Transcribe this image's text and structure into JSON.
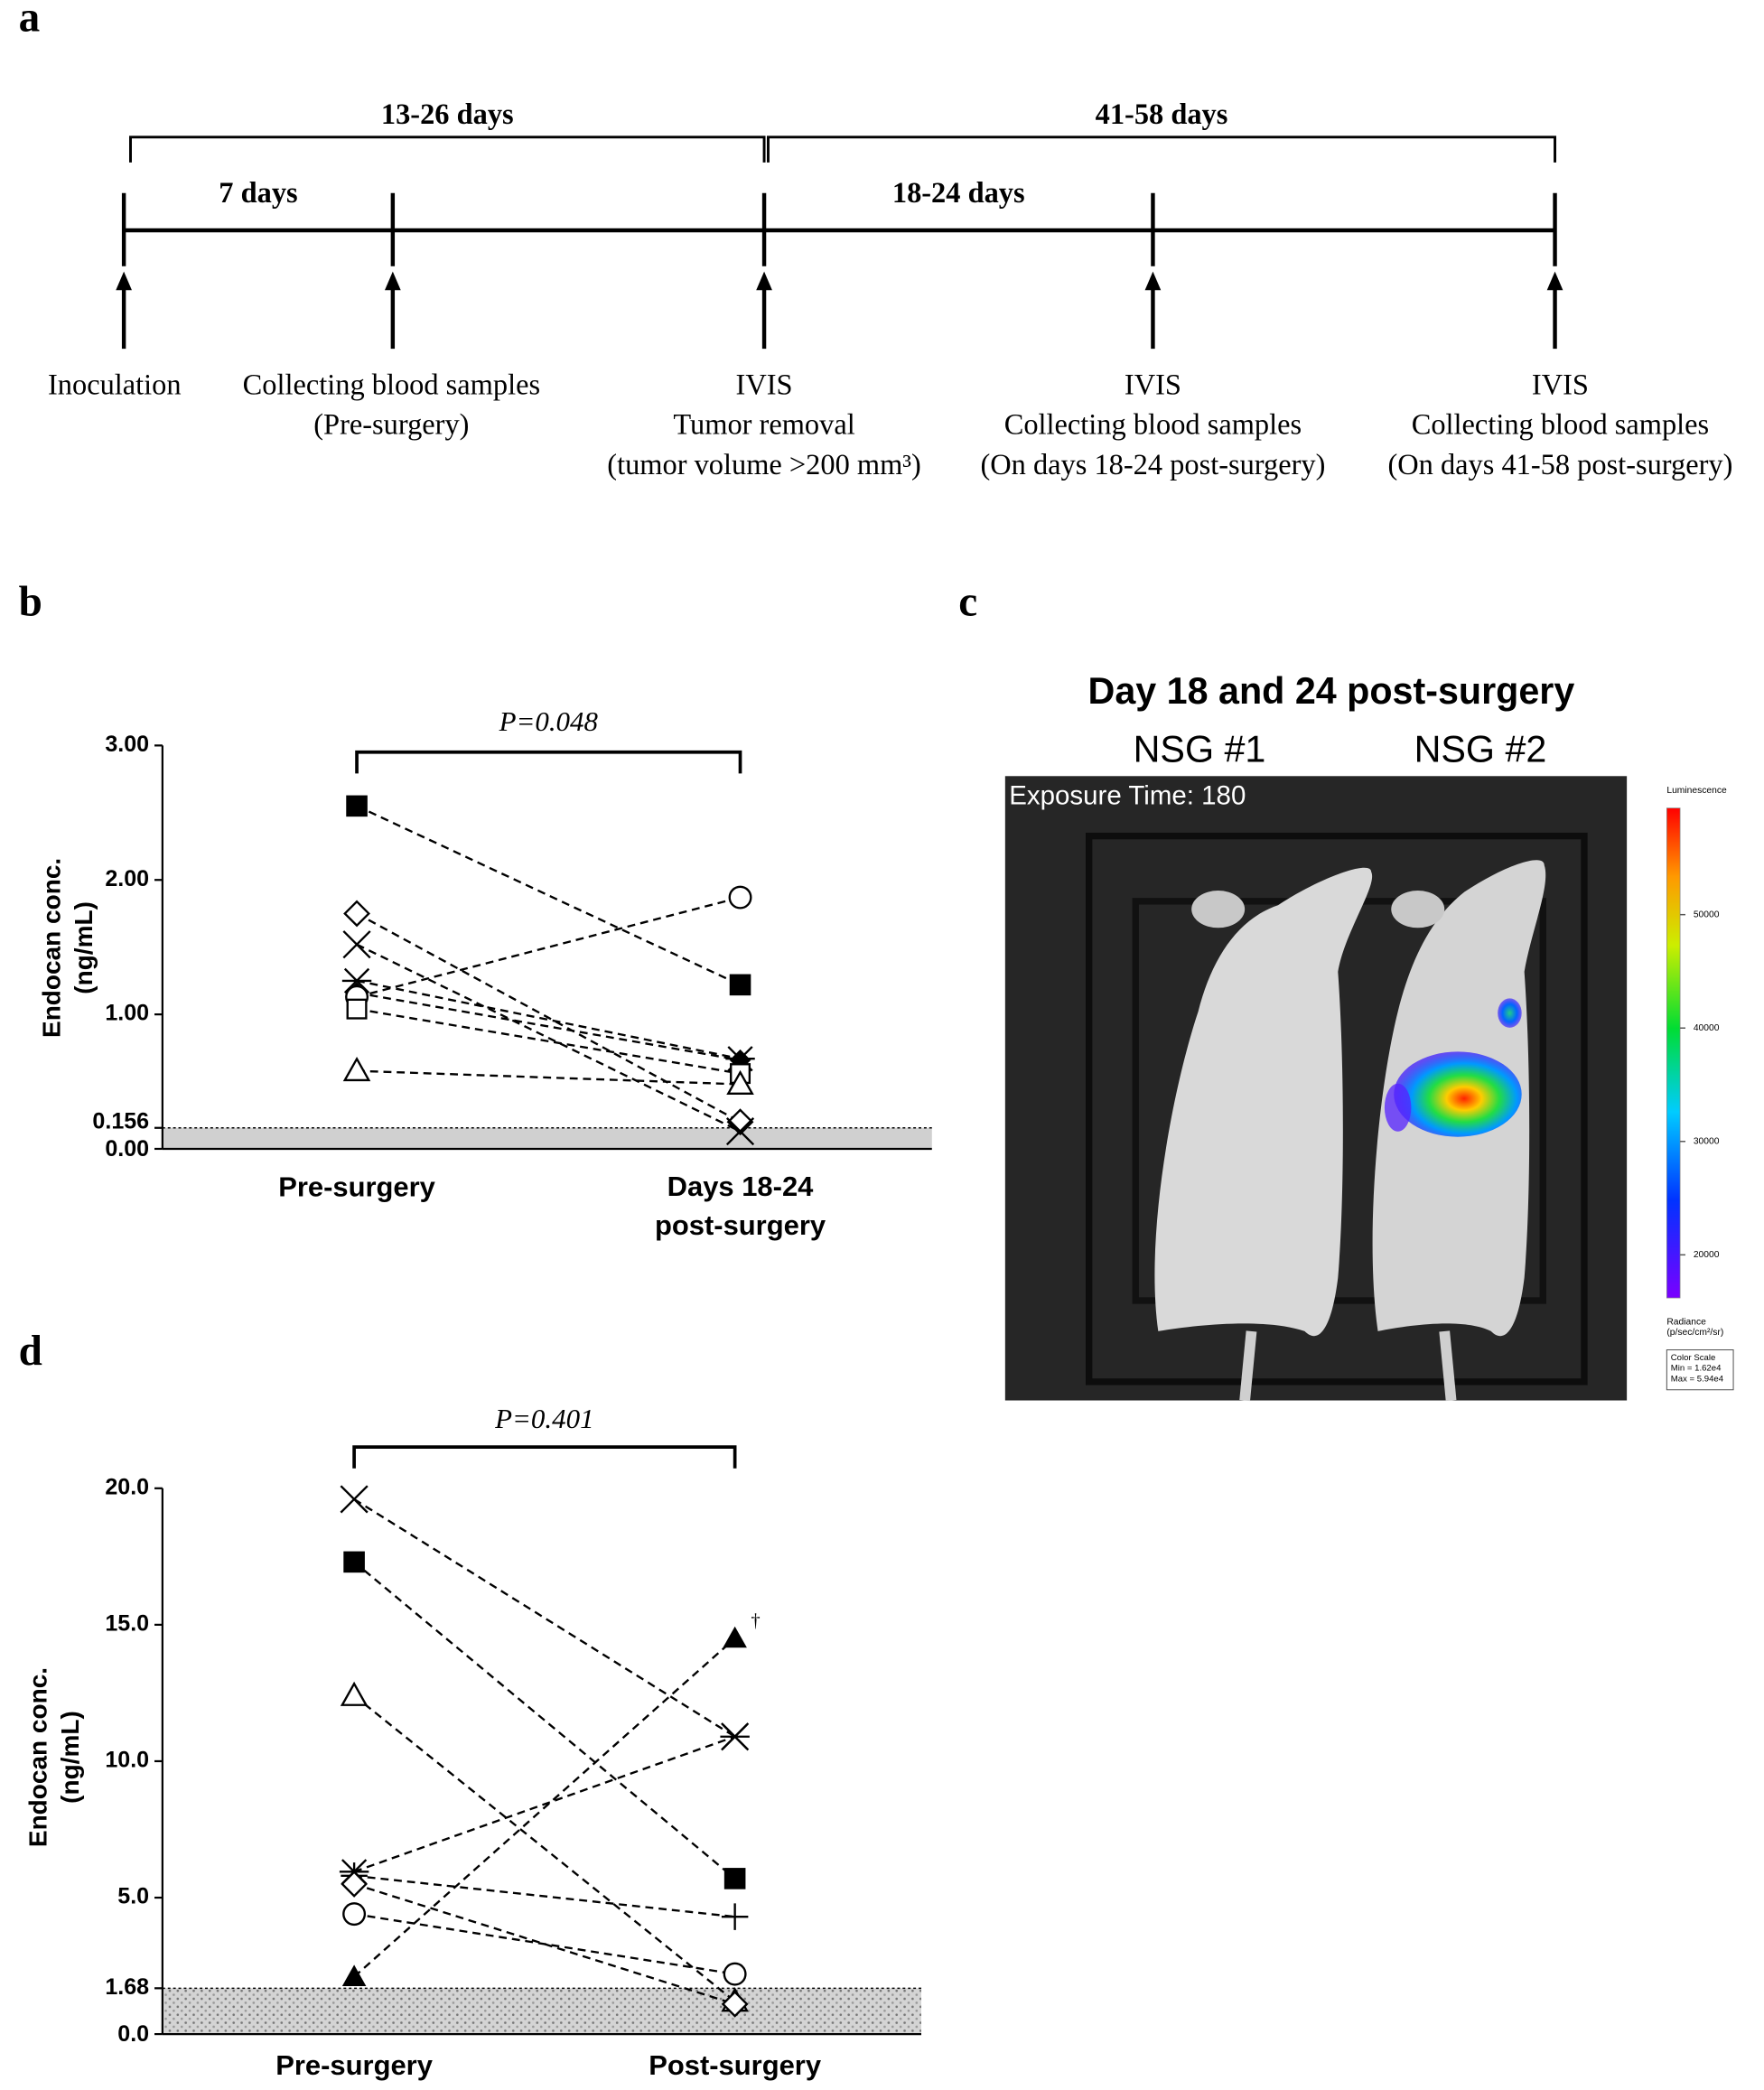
{
  "panel_labels": [
    "a",
    "b",
    "c",
    "d"
  ],
  "timeline": {
    "spans": [
      "13-26 days",
      "41-58 days"
    ],
    "intervals": [
      "7 days",
      "18-24 days"
    ],
    "events": [
      [
        "Inoculation"
      ],
      [
        "Collecting blood samples",
        "(Pre-surgery)"
      ],
      [
        "IVIS",
        "Tumor removal",
        "(tumor volume >200 mm³)"
      ],
      [
        "IVIS",
        "Collecting blood samples",
        "(On days 18-24 post-surgery)"
      ],
      [
        "IVIS",
        "Collecting blood samples",
        "(On days 41-58 post-surgery)"
      ]
    ]
  },
  "imaging": {
    "title": "Day 18 and 24 post-surgery",
    "subjects": [
      "NSG #1",
      "NSG #2"
    ],
    "exposure": "Exposure Time: 180",
    "colorbar": {
      "title": "Luminescence",
      "lim": [
        16200,
        59400
      ],
      "ticks": [
        50000,
        40000,
        30000,
        20000
      ],
      "unit_lines": [
        "Radiance",
        "(p/sec/cm²/sr)"
      ],
      "scale_box": [
        "Color Scale",
        "Min = 1.62e4",
        "Max = 5.94e4"
      ]
    }
  },
  "chart_data": [
    {
      "type": "paired",
      "annotation": "P=0.048",
      "y_label": [
        "Endocan conc.",
        "(ng/mL)"
      ],
      "categories": [
        "Pre-surgery",
        "Days 18-24\npost-surgery"
      ],
      "ylim": [
        0,
        3
      ],
      "yticks": [
        {
          "value": 0,
          "label": "0.00"
        },
        {
          "value": 0.156,
          "label": "0.156"
        },
        {
          "value": 1,
          "label": "1.00"
        },
        {
          "value": 2,
          "label": "2.00"
        },
        {
          "value": 3,
          "label": "3.00"
        }
      ],
      "shade_below": 0.156,
      "color": "#000000",
      "series": [
        {
          "marker": "square-filled",
          "values": [
            2.55,
            1.22
          ]
        },
        {
          "marker": "diamond-open",
          "values": [
            1.75,
            0.2
          ]
        },
        {
          "marker": "x",
          "values": [
            1.52,
            0.13
          ]
        },
        {
          "marker": "asterisk",
          "values": [
            1.25,
            0.67
          ]
        },
        {
          "marker": "diamond-filled",
          "values": [
            1.16,
            0.66
          ]
        },
        {
          "marker": "circle-open",
          "values": [
            1.13,
            1.87
          ]
        },
        {
          "marker": "square-open",
          "values": [
            1.04,
            0.56
          ]
        },
        {
          "marker": "triangle-open",
          "values": [
            0.58,
            0.48
          ]
        }
      ]
    },
    {
      "type": "paired",
      "annotation": "P=0.401",
      "y_label": [
        "Endocan conc.",
        "(ng/mL)"
      ],
      "categories": [
        "Pre-surgery",
        "Post-surgery"
      ],
      "ylim": [
        0,
        20
      ],
      "yticks": [
        {
          "value": 0,
          "label": "0.0"
        },
        1.68,
        {
          "value": 5,
          "label": "5.0"
        },
        {
          "value": 10,
          "label": "10.0"
        },
        {
          "value": 15,
          "label": "15.0"
        },
        {
          "value": 20,
          "label": "20.0"
        }
      ],
      "shade_below": 1.68,
      "shade_pattern": "dots",
      "color": "#000000",
      "series": [
        {
          "marker": "x",
          "values": [
            19.6,
            10.9
          ]
        },
        {
          "marker": "square-filled",
          "values": [
            17.3,
            5.7
          ]
        },
        {
          "marker": "triangle-open",
          "values": [
            12.4,
            1.2
          ]
        },
        {
          "marker": "asterisk",
          "values": [
            5.95,
            10.9
          ]
        },
        {
          "marker": "plus",
          "values": [
            5.8,
            4.3
          ]
        },
        {
          "marker": "circle-open",
          "values": [
            4.4,
            2.2
          ]
        },
        {
          "marker": "diamond-open",
          "values": [
            5.5,
            1.1
          ]
        },
        {
          "marker": "triangle-filled",
          "values": [
            2.1,
            14.5
          ],
          "note": "†"
        }
      ]
    }
  ]
}
